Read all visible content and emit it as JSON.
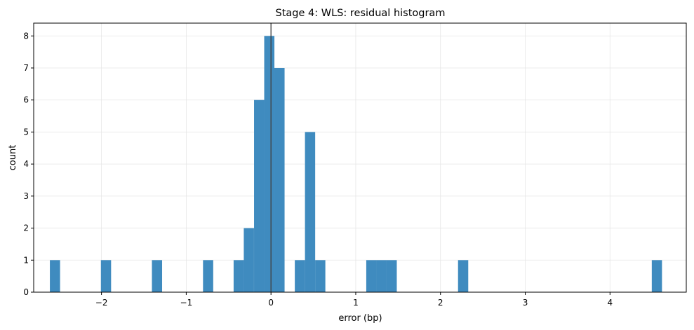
{
  "chart_data": {
    "type": "bar",
    "title": "Stage 4: WLS: residual histogram",
    "xlabel": "error (bp)",
    "ylabel": "count",
    "xlim": [
      -2.8,
      4.9
    ],
    "ylim": [
      0,
      8.4
    ],
    "xticks": [
      -2,
      -1,
      0,
      1,
      2,
      3,
      4
    ],
    "xtick_labels": [
      "−2",
      "−1",
      "0",
      "1",
      "2",
      "3",
      "4"
    ],
    "yticks": [
      0,
      1,
      2,
      3,
      4,
      5,
      6,
      7,
      8
    ],
    "ytick_labels": [
      "0",
      "1",
      "2",
      "3",
      "4",
      "5",
      "6",
      "7",
      "8"
    ],
    "bin_width": 0.1203,
    "bins": [
      {
        "start": -2.609,
        "count": 1
      },
      {
        "start": -2.007,
        "count": 1
      },
      {
        "start": -1.405,
        "count": 1
      },
      {
        "start": -0.802,
        "count": 1
      },
      {
        "start": -0.441,
        "count": 1
      },
      {
        "start": -0.321,
        "count": 2
      },
      {
        "start": -0.2,
        "count": 6
      },
      {
        "start": -0.08,
        "count": 8
      },
      {
        "start": 0.04,
        "count": 7
      },
      {
        "start": 0.281,
        "count": 1
      },
      {
        "start": 0.401,
        "count": 5
      },
      {
        "start": 0.521,
        "count": 1
      },
      {
        "start": 1.124,
        "count": 1
      },
      {
        "start": 1.244,
        "count": 1
      },
      {
        "start": 1.364,
        "count": 1
      },
      {
        "start": 2.207,
        "count": 1
      },
      {
        "start": 4.493,
        "count": 1
      }
    ],
    "vline_x": 0,
    "grid": true,
    "bar_color": "#3f8bbf",
    "vline_color": "#404040"
  }
}
